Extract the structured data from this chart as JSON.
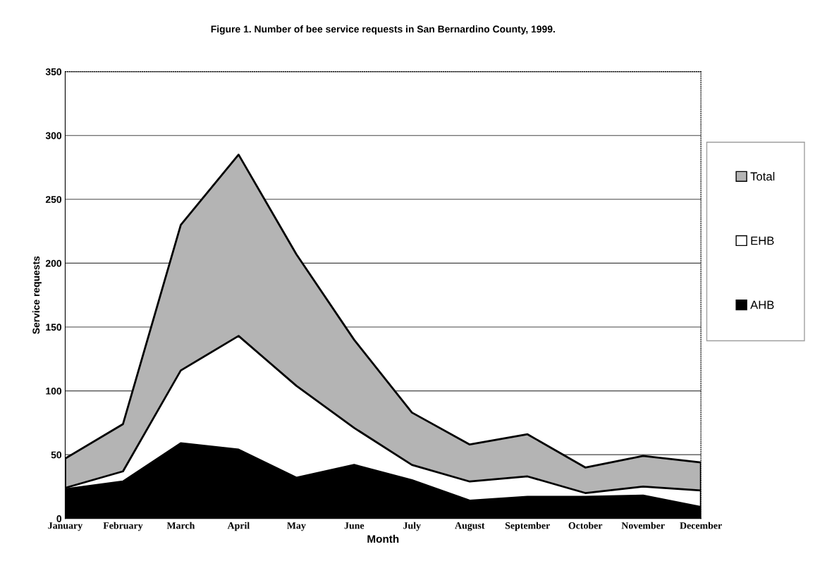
{
  "chart_data": {
    "type": "area",
    "title": "Figure 1. Number of bee service requests in San Bernardino County, 1999.",
    "xlabel": "Month",
    "ylabel": "Service requests",
    "categories": [
      "January",
      "February",
      "March",
      "April",
      "May",
      "June",
      "July",
      "August",
      "September",
      "October",
      "November",
      "December"
    ],
    "series": [
      {
        "name": "Total",
        "color": "#b4b4b4",
        "values": [
          47,
          74,
          230,
          285,
          207,
          140,
          83,
          58,
          66,
          40,
          49,
          44
        ]
      },
      {
        "name": "EHB",
        "color": "#ffffff",
        "values": [
          24,
          37,
          116,
          143,
          104,
          71,
          42,
          29,
          33,
          20,
          25,
          22
        ]
      },
      {
        "name": "AHB",
        "color": "#000000",
        "values": [
          23,
          29,
          59,
          54,
          32,
          42,
          30,
          14,
          17,
          17,
          18,
          9
        ]
      }
    ],
    "ylim": [
      0,
      350
    ],
    "yticks": [
      0,
      50,
      100,
      150,
      200,
      250,
      300,
      350
    ],
    "grid": "y",
    "legend": "right"
  }
}
